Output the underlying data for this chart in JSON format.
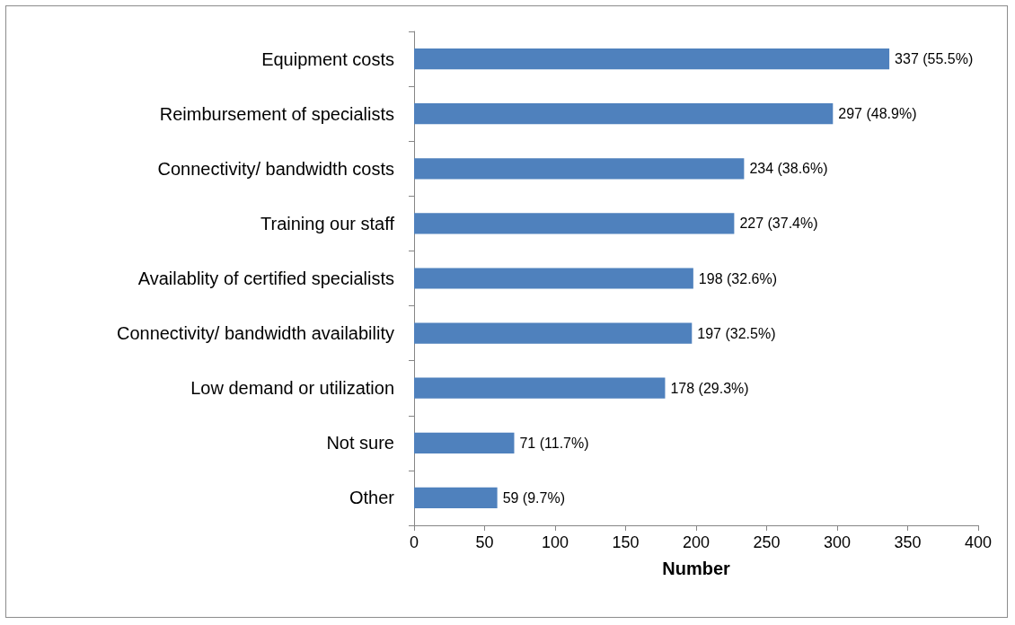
{
  "chart_data": {
    "type": "bar",
    "orientation": "horizontal",
    "xlabel": "Number",
    "categories": [
      "Equipment costs",
      "Reimbursement of specialists",
      "Connectivity/ bandwidth costs",
      "Training our staff",
      "Availablity of certified specialists",
      "Connectivity/ bandwidth availability",
      "Low demand or utilization",
      "Not sure",
      "Other"
    ],
    "values": [
      337,
      297,
      234,
      227,
      198,
      197,
      178,
      71,
      59
    ],
    "value_labels": [
      "337 (55.5%)",
      "297 (48.9%)",
      "234 (38.6%)",
      "227 (37.4%)",
      "198 (32.6%)",
      "197 (32.5%)",
      "178 (29.3%)",
      "71 (11.7%)",
      "59 (9.7%)"
    ],
    "color": "#4f81bd",
    "xlim": [
      0,
      400
    ],
    "xticks": [
      0,
      50,
      100,
      150,
      200,
      250,
      300,
      350,
      400
    ],
    "grid": false
  }
}
